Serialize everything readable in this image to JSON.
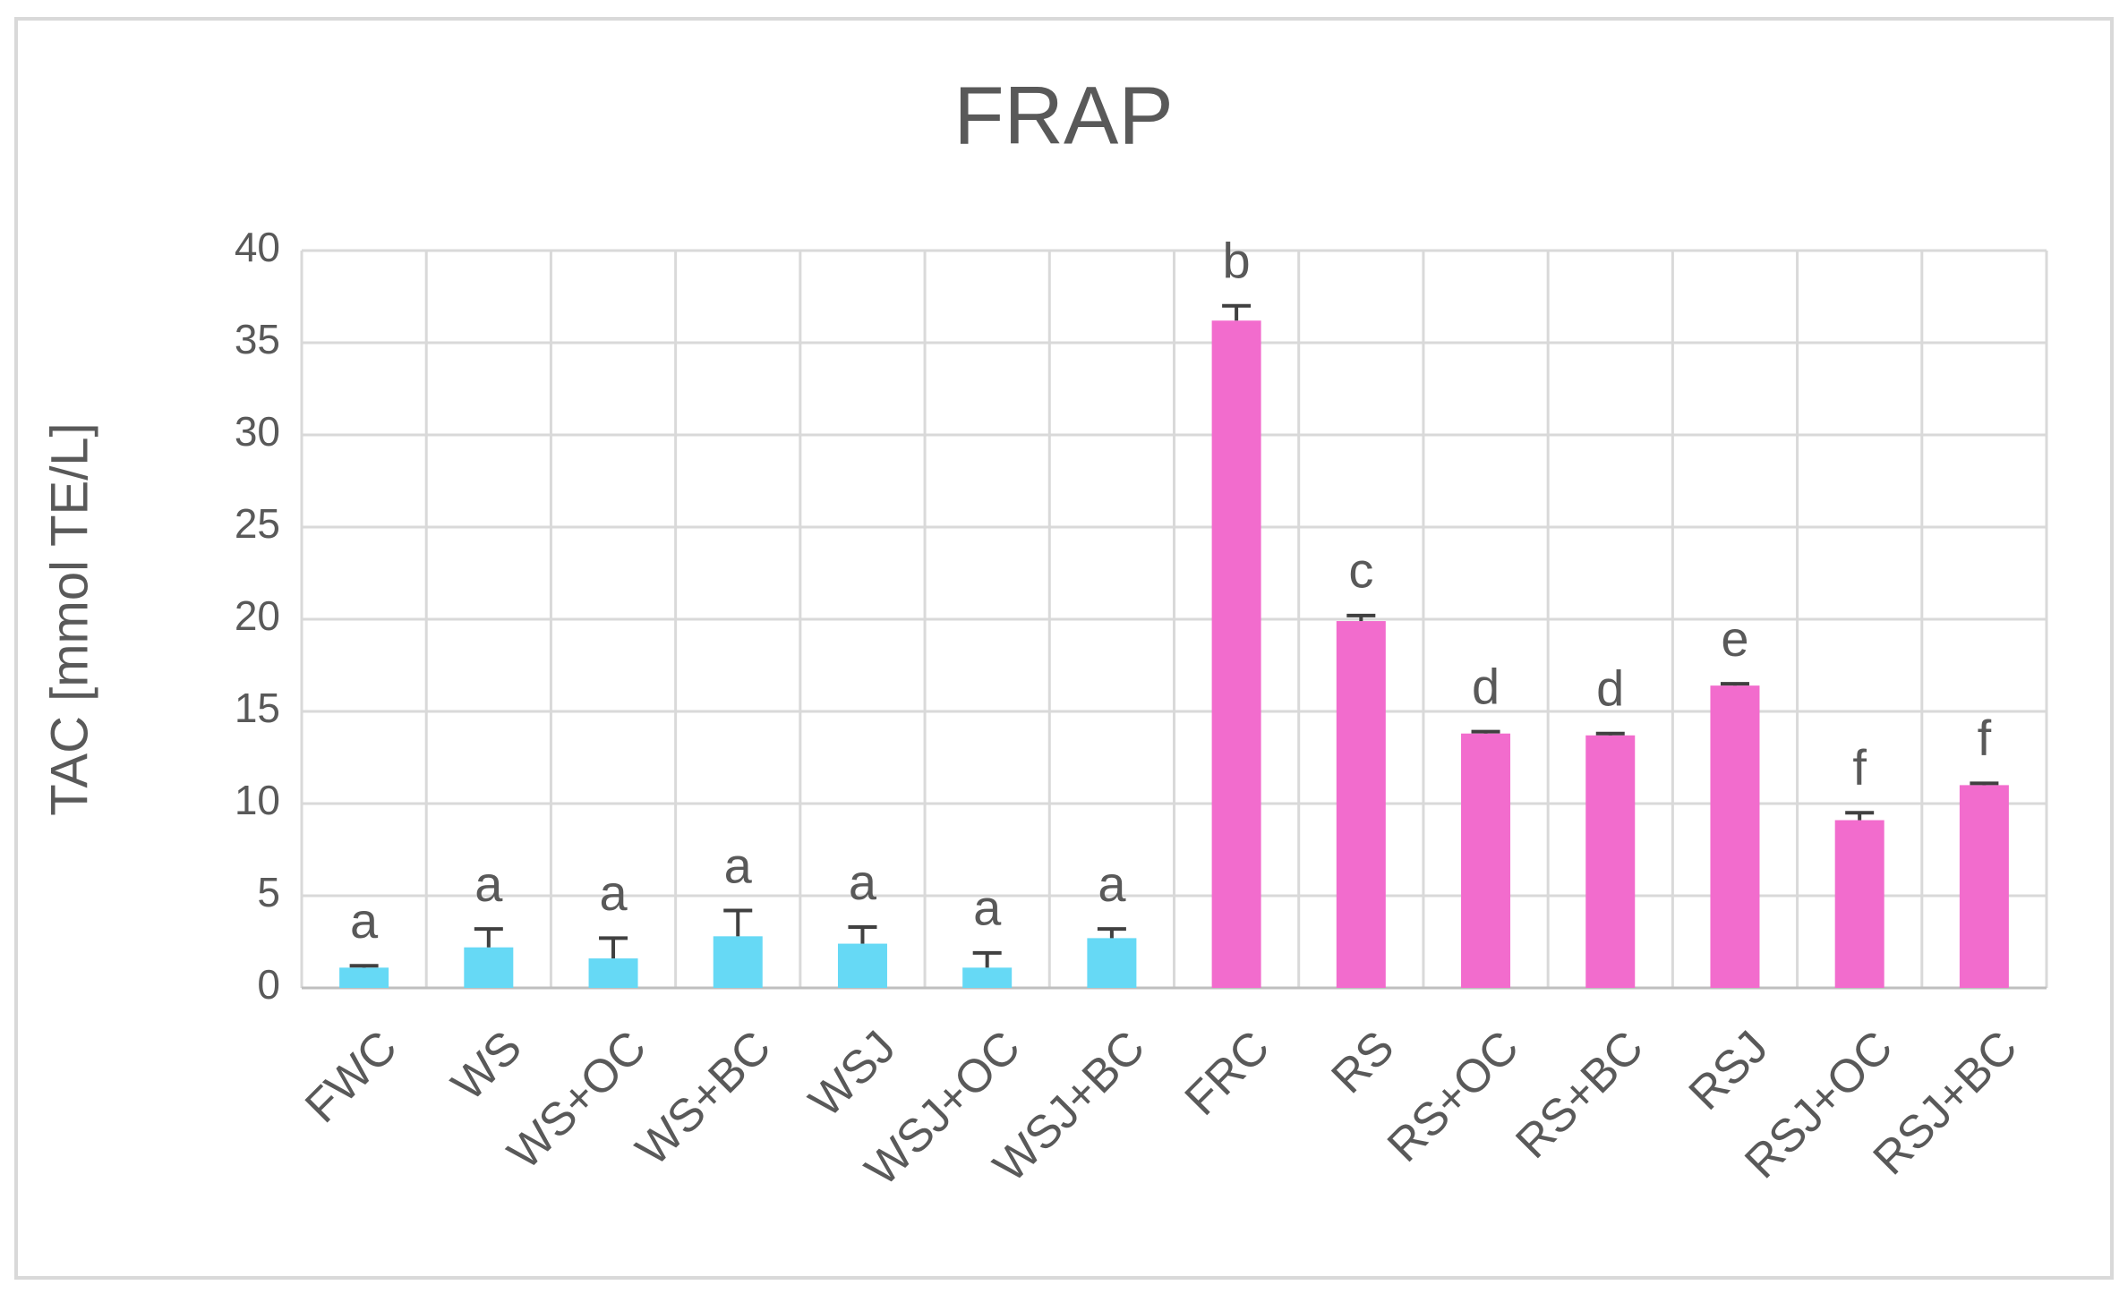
{
  "chart_data": {
    "type": "bar",
    "title": "FRAP",
    "y_label": "TAC [mmol TE/L]",
    "categories": [
      "FWC",
      "WS",
      "WS+OC",
      "WS+BC",
      "WSJ",
      "WSJ+OC",
      "WSJ+BC",
      "FRC",
      "RS",
      "RS+OC",
      "RS+BC",
      "RSJ",
      "RSJ+OC",
      "RSJ+BC"
    ],
    "values": [
      1.1,
      2.2,
      1.6,
      2.8,
      2.4,
      1.1,
      2.7,
      36.2,
      19.9,
      13.8,
      13.7,
      16.4,
      9.1,
      11.0
    ],
    "errors": [
      0.1,
      1.0,
      1.1,
      1.4,
      0.9,
      0.8,
      0.5,
      0.8,
      0.3,
      0.1,
      0.1,
      0.1,
      0.4,
      0.1
    ],
    "letters": [
      "a",
      "a",
      "a",
      "a",
      "a",
      "a",
      "a",
      "b",
      "c",
      "d",
      "d",
      "e",
      "f",
      "f"
    ],
    "colors": [
      "#66d9f5",
      "#66d9f5",
      "#66d9f5",
      "#66d9f5",
      "#66d9f5",
      "#66d9f5",
      "#66d9f5",
      "#f26ccd",
      "#f26ccd",
      "#f26ccd",
      "#f26ccd",
      "#f26ccd",
      "#f26ccd",
      "#f26ccd"
    ],
    "ylim": [
      0,
      40
    ],
    "yticks": [
      0,
      5,
      10,
      15,
      20,
      25,
      30,
      35,
      40
    ],
    "grid": true
  }
}
